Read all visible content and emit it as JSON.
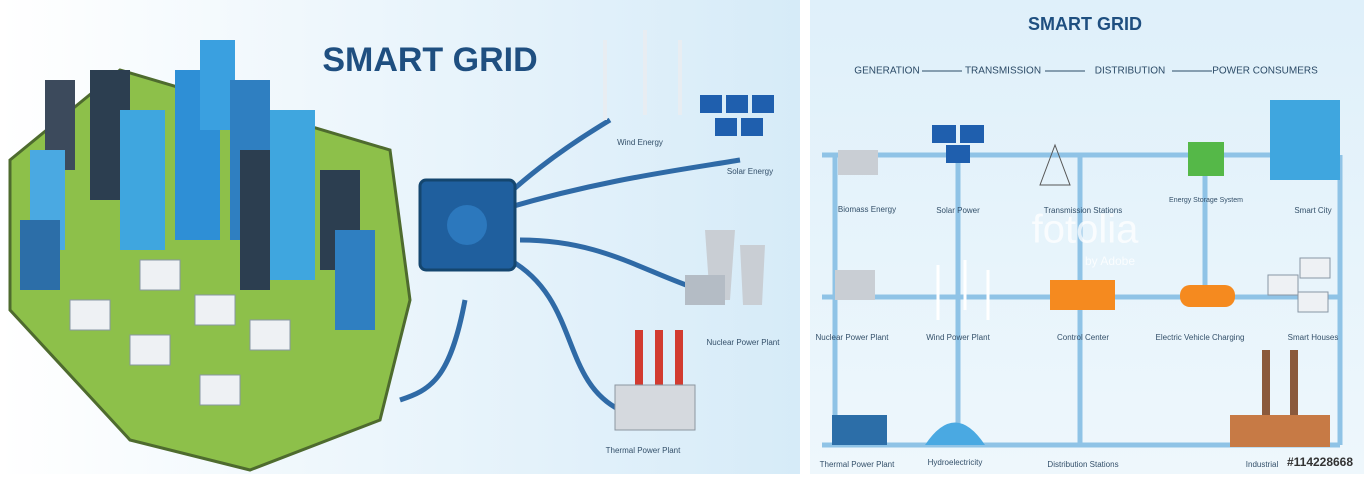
{
  "left_panel": {
    "title": "SMART GRID",
    "labels": [
      "Wind Energy",
      "Solar Energy",
      "Nuclear Power Plant",
      "Thermal Power Plant"
    ]
  },
  "right_panel": {
    "title": "SMART GRID",
    "flow": [
      "GENERATION",
      "TRANSMISSION",
      "DISTRIBUTION",
      "POWER CONSUMERS"
    ],
    "nodes": [
      {
        "label": "Biomass Energy"
      },
      {
        "label": "Solar Power"
      },
      {
        "label": "Transmission Stations"
      },
      {
        "label": "Energy Storage System"
      },
      {
        "label": "Smart City"
      },
      {
        "label": "Nuclear Power Plant"
      },
      {
        "label": "Wind Power Plant"
      },
      {
        "label": "Control Center"
      },
      {
        "label": "Electric Vehicle Charging"
      },
      {
        "label": "Smart Houses"
      },
      {
        "label": "Thermal Power Plant"
      },
      {
        "label": "Hydroelectricity"
      },
      {
        "label": "Distribution Stations"
      },
      {
        "label": "Industrial"
      }
    ],
    "watermark": "fotolia",
    "watermark_sub": "by Adobe",
    "stock_id": "#114228668"
  }
}
